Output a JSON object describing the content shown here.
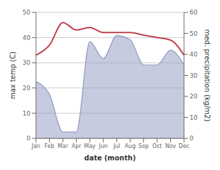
{
  "chart_data": {
    "type": "line",
    "categories": [
      "Jan",
      "Feb",
      "Mar",
      "Apr",
      "May",
      "Jun",
      "Jul",
      "Aug",
      "Sep",
      "Oct",
      "Nov",
      "Dec"
    ],
    "series": [
      {
        "type": "area",
        "axis": "y2",
        "color": "#9098c0",
        "values": [
          27,
          21,
          3,
          3,
          46,
          38,
          49,
          47,
          35,
          35,
          42,
          35
        ]
      },
      {
        "type": "line",
        "axis": "y",
        "color": "#c0404a",
        "values": [
          33,
          37,
          46,
          43,
          44,
          42,
          42,
          42,
          41,
          40,
          39,
          33
        ]
      }
    ],
    "ylim": [
      0,
      50
    ],
    "yticks": [
      0,
      10,
      20,
      30,
      40,
      50
    ],
    "y2lim": [
      0,
      60
    ],
    "y2ticks": [
      0,
      10,
      20,
      30,
      40,
      50,
      60
    ],
    "xlabel": "date (month)",
    "ylabel": "max temp (C)",
    "y2label": "med. precipitation (kg/m2)",
    "grid": true
  }
}
